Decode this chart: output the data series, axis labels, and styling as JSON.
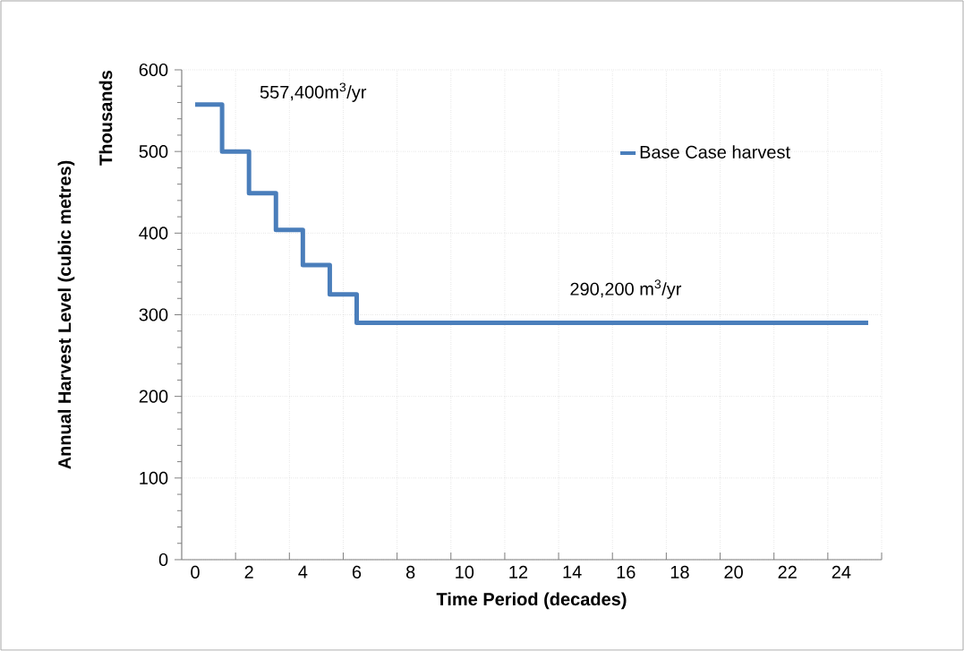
{
  "chart_data": {
    "type": "step",
    "xlabel": "Time Period (decades)",
    "ylabel": "Annual Harvest Level (cubic metres)",
    "x": [
      0,
      1,
      2,
      3,
      4,
      5,
      6,
      25
    ],
    "series": [
      {
        "name": "Base Case harvest",
        "color": "#4a7ebb",
        "values": [
          557.4,
          500,
          449,
          404,
          361,
          325,
          290.2,
          290.2
        ]
      }
    ],
    "xlim": [
      -0.5,
      25.5
    ],
    "xticks": [
      0,
      2,
      4,
      6,
      8,
      10,
      12,
      14,
      16,
      18,
      20,
      22,
      24,
      {
        "value": 1.5,
        "label": null
      },
      {
        "value": 3.5,
        "label": null
      },
      {
        "value": 5.5,
        "label": null
      },
      {
        "value": 7.5,
        "label": null
      },
      {
        "value": 9.5,
        "label": null
      },
      {
        "value": 11.5,
        "label": null
      },
      {
        "value": 13.5,
        "label": null
      },
      {
        "value": 15.5,
        "label": null
      },
      {
        "value": 17.5,
        "label": null
      },
      {
        "value": 19.5,
        "label": null
      },
      {
        "value": 21.5,
        "label": null
      },
      {
        "value": 23.5,
        "label": null
      },
      {
        "value": 25.5,
        "label": null
      }
    ],
    "ylim": [
      0,
      600
    ],
    "yticks": [
      0,
      100,
      200,
      300,
      400,
      500,
      600
    ],
    "grid": true,
    "legend": "top right",
    "annotations": [
      "557,400m$^{3}$/yr",
      "290,200 m$^{3}$/yr",
      "Thousands"
    ]
  }
}
